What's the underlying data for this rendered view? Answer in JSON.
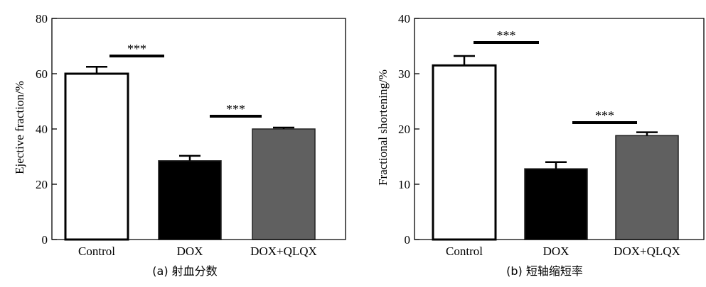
{
  "chart_data": [
    {
      "type": "bar",
      "categories": [
        "Control",
        "DOX",
        "DOX+QLQX"
      ],
      "values": [
        60,
        28.5,
        40
      ],
      "errors": [
        2.5,
        1.8,
        0.5
      ],
      "colors": [
        "#ffffff",
        "#000000",
        "#606060"
      ],
      "ylabel": "Ejective fraction/%",
      "ylim": [
        0,
        80
      ],
      "yticks": [
        0,
        20,
        40,
        60,
        80
      ],
      "caption": "(a) 射血分数",
      "significance": [
        {
          "from": "Control",
          "to": "DOX",
          "label": "***"
        },
        {
          "from": "DOX",
          "to": "DOX+QLQX",
          "label": "***"
        }
      ]
    },
    {
      "type": "bar",
      "categories": [
        "Control",
        "DOX",
        "DOX+QLQX"
      ],
      "values": [
        31.5,
        12.8,
        18.8
      ],
      "errors": [
        1.7,
        1.2,
        0.6
      ],
      "colors": [
        "#ffffff",
        "#000000",
        "#606060"
      ],
      "ylabel": "Fractional shortening/%",
      "ylim": [
        0,
        40
      ],
      "yticks": [
        0,
        10,
        20,
        30,
        40
      ],
      "caption": "(b) 短轴缩短率",
      "significance": [
        {
          "from": "Control",
          "to": "DOX",
          "label": "***"
        },
        {
          "from": "DOX",
          "to": "DOX+QLQX",
          "label": "***"
        }
      ]
    }
  ]
}
